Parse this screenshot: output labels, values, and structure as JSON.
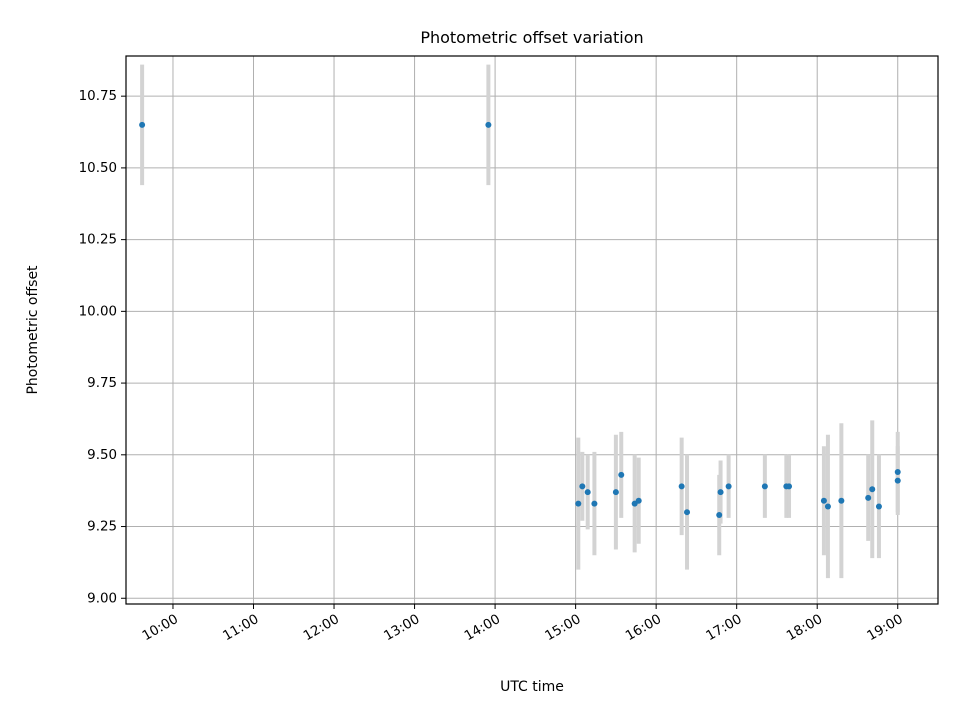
{
  "chart_data": {
    "type": "scatter",
    "title": "Photometric offset variation",
    "xlabel": "UTC time",
    "ylabel": "Photometric offset",
    "x_axis_type": "time (UTC)",
    "xlim": [
      "09:25",
      "19:30"
    ],
    "ylim": [
      8.98,
      10.89
    ],
    "grid": true,
    "colors": {
      "points": "#1f77b4",
      "errorbars": "#d3d3d3",
      "grid": "#b0b0b0"
    },
    "x_ticks": [
      "10:00",
      "11:00",
      "12:00",
      "13:00",
      "14:00",
      "15:00",
      "16:00",
      "17:00",
      "18:00",
      "19:00"
    ],
    "y_ticks": [
      "9.00",
      "9.25",
      "9.50",
      "9.75",
      "10.00",
      "10.25",
      "10.50",
      "10.75"
    ],
    "points": [
      {
        "x": "09:37",
        "y": 10.65,
        "err": 0.21
      },
      {
        "x": "13:55",
        "y": 10.65,
        "err": 0.21
      },
      {
        "x": "15:02",
        "y": 9.33,
        "err": 0.23
      },
      {
        "x": "15:05",
        "y": 9.39,
        "err": 0.12
      },
      {
        "x": "15:09",
        "y": 9.37,
        "err": 0.13
      },
      {
        "x": "15:14",
        "y": 9.33,
        "err": 0.18
      },
      {
        "x": "15:30",
        "y": 9.37,
        "err": 0.2
      },
      {
        "x": "15:34",
        "y": 9.43,
        "err": 0.15
      },
      {
        "x": "15:44",
        "y": 9.33,
        "err": 0.17
      },
      {
        "x": "15:47",
        "y": 9.34,
        "err": 0.15
      },
      {
        "x": "16:19",
        "y": 9.39,
        "err": 0.17
      },
      {
        "x": "16:23",
        "y": 9.3,
        "err": 0.2
      },
      {
        "x": "16:47",
        "y": 9.29,
        "err": 0.14
      },
      {
        "x": "16:48",
        "y": 9.37,
        "err": 0.11
      },
      {
        "x": "16:54",
        "y": 9.39,
        "err": 0.11
      },
      {
        "x": "17:21",
        "y": 9.39,
        "err": 0.11
      },
      {
        "x": "17:37",
        "y": 9.39,
        "err": 0.11
      },
      {
        "x": "17:39",
        "y": 9.39,
        "err": 0.11
      },
      {
        "x": "18:05",
        "y": 9.34,
        "err": 0.19
      },
      {
        "x": "18:08",
        "y": 9.32,
        "err": 0.25
      },
      {
        "x": "18:18",
        "y": 9.34,
        "err": 0.27
      },
      {
        "x": "18:38",
        "y": 9.35,
        "err": 0.15
      },
      {
        "x": "18:41",
        "y": 9.38,
        "err": 0.24
      },
      {
        "x": "18:46",
        "y": 9.32,
        "err": 0.18
      },
      {
        "x": "19:00",
        "y": 9.41,
        "err": 0.12
      },
      {
        "x": "19:00",
        "y": 9.44,
        "err": 0.14
      }
    ]
  }
}
